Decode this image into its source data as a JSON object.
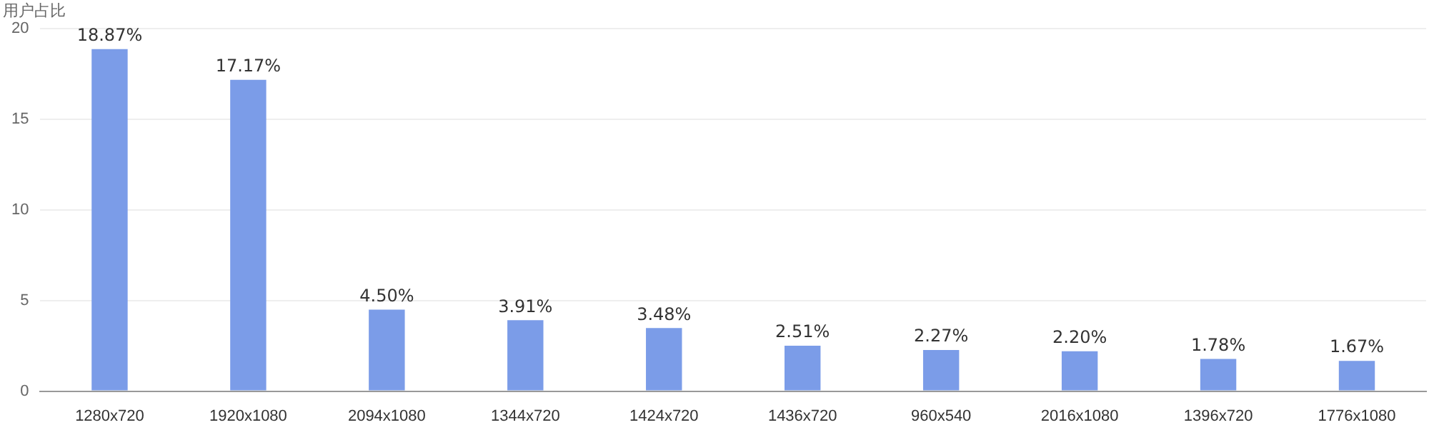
{
  "chart_data": {
    "type": "bar",
    "ylabel": "用户占比",
    "categories": [
      "1280x720",
      "1920x1080",
      "2094x1080",
      "1344x720",
      "1424x720",
      "1436x720",
      "960x540",
      "2016x1080",
      "1396x720",
      "1776x1080"
    ],
    "values": [
      18.87,
      17.17,
      4.5,
      3.91,
      3.48,
      2.51,
      2.27,
      2.2,
      1.78,
      1.67
    ],
    "value_labels": [
      "18.87%",
      "17.17%",
      "4.50%",
      "3.91%",
      "3.48%",
      "2.51%",
      "2.27%",
      "2.20%",
      "1.78%",
      "1.67%"
    ],
    "color": "#7b9ce8",
    "ylim": [
      0,
      20
    ],
    "yticks": [
      0,
      5,
      10,
      15,
      20
    ],
    "grid": "y",
    "legend": false
  }
}
